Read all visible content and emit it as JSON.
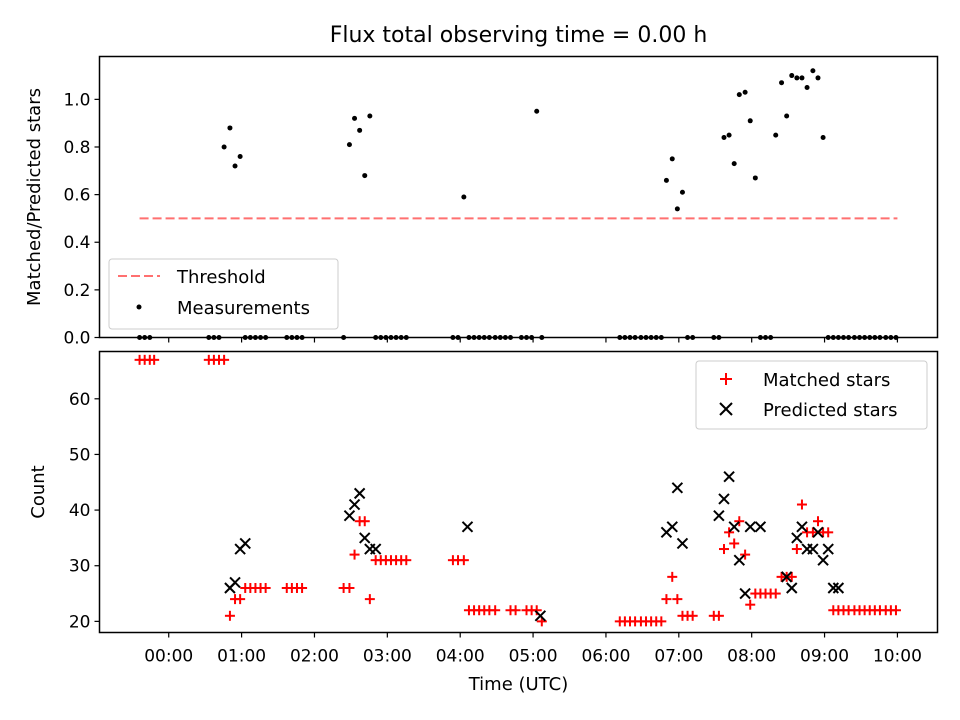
{
  "title": "Flux total observing time = 0.00 h",
  "chart_data": [
    {
      "type": "scatter",
      "ylabel": "Matched/Predicted stars",
      "xlim": [
        -0.95,
        10.55
      ],
      "ylim": [
        0,
        1.18
      ],
      "yticks": [
        0.0,
        0.2,
        0.4,
        0.6,
        0.8,
        1.0
      ],
      "ytick_labels": [
        "0.0",
        "0.2",
        "0.4",
        "0.6",
        "0.8",
        "1.0"
      ],
      "xticks": [
        0,
        1,
        2,
        3,
        4,
        5,
        6,
        7,
        8,
        9,
        10
      ],
      "grid": false,
      "legend": {
        "placement": "lower left",
        "entries": [
          "Threshold",
          "Measurements"
        ]
      },
      "threshold": {
        "name": "Threshold",
        "value": 0.5,
        "x_range": [
          -0.4,
          10.0
        ],
        "color": "#ff7070"
      },
      "series": [
        {
          "name": "Measurements",
          "marker": "dot",
          "color": "#000000",
          "x": [
            -0.4,
            -0.33,
            -0.26,
            0.55,
            0.62,
            0.69,
            0.76,
            0.84,
            0.91,
            0.98,
            1.05,
            1.12,
            1.19,
            1.26,
            1.33,
            1.62,
            1.69,
            1.76,
            1.83,
            2.4,
            2.48,
            2.55,
            2.62,
            2.69,
            2.76,
            2.84,
            2.91,
            2.98,
            3.05,
            3.12,
            3.19,
            3.26,
            3.9,
            3.97,
            4.05,
            4.12,
            4.19,
            4.26,
            4.33,
            4.4,
            4.48,
            4.55,
            4.62,
            4.69,
            4.84,
            4.91,
            4.98,
            5.05,
            5.12,
            6.19,
            6.26,
            6.33,
            6.4,
            6.48,
            6.55,
            6.62,
            6.69,
            6.76,
            6.83,
            6.91,
            6.98,
            7.05,
            7.12,
            7.19,
            7.48,
            7.55,
            7.62,
            7.69,
            7.76,
            7.83,
            7.91,
            7.98,
            8.05,
            8.12,
            8.19,
            8.26,
            8.33,
            8.41,
            8.48,
            8.55,
            8.62,
            8.69,
            8.76,
            8.84,
            8.91,
            8.98,
            9.05,
            9.12,
            9.19,
            9.26,
            9.33,
            9.41,
            9.48,
            9.55,
            9.62,
            9.69,
            9.76,
            9.84,
            9.91,
            9.98
          ],
          "y": [
            0,
            0,
            0,
            0,
            0,
            0,
            0.8,
            0.88,
            0.72,
            0.76,
            0,
            0,
            0,
            0,
            0,
            0,
            0,
            0,
            0,
            0,
            0.81,
            0.92,
            0.87,
            0.68,
            0.93,
            0,
            0,
            0,
            0,
            0,
            0,
            0,
            0,
            0,
            0.59,
            0,
            0,
            0,
            0,
            0,
            0,
            0,
            0,
            0,
            0,
            0,
            0,
            0.95,
            0,
            0,
            0,
            0,
            0,
            0,
            0,
            0,
            0,
            0,
            0.66,
            0.75,
            0.54,
            0.61,
            0,
            0,
            0,
            0,
            0.84,
            0.85,
            0.73,
            1.02,
            1.03,
            0.91,
            0.67,
            0,
            0,
            0,
            0.85,
            1.07,
            0.93,
            1.1,
            1.09,
            1.09,
            1.05,
            1.12,
            1.09,
            0.84,
            0,
            0,
            0,
            0,
            0,
            0,
            0,
            0,
            0,
            0,
            0,
            0,
            0,
            0
          ]
        }
      ]
    },
    {
      "type": "scatter",
      "ylabel": "Count",
      "xlabel": "Time (UTC)",
      "xlim": [
        -0.95,
        10.55
      ],
      "ylim": [
        18,
        68.5
      ],
      "yticks": [
        20,
        30,
        40,
        50,
        60
      ],
      "ytick_labels": [
        "20",
        "30",
        "40",
        "50",
        "60"
      ],
      "xticks": [
        0,
        1,
        2,
        3,
        4,
        5,
        6,
        7,
        8,
        9,
        10
      ],
      "xtick_labels": [
        "00:00",
        "01:00",
        "02:00",
        "03:00",
        "04:00",
        "05:00",
        "06:00",
        "07:00",
        "08:00",
        "09:00",
        "10:00"
      ],
      "grid": false,
      "legend": {
        "placement": "upper right",
        "entries": [
          "Matched stars",
          "Predicted stars"
        ]
      },
      "series": [
        {
          "name": "Matched stars",
          "marker": "plus",
          "color": "#ff0000",
          "x": [
            -0.4,
            -0.33,
            -0.26,
            -0.2,
            0.55,
            0.62,
            0.69,
            0.76,
            0.84,
            0.91,
            0.98,
            1.05,
            1.12,
            1.19,
            1.26,
            1.33,
            1.62,
            1.69,
            1.76,
            1.83,
            2.4,
            2.48,
            2.55,
            2.62,
            2.69,
            2.76,
            2.84,
            2.91,
            2.98,
            3.05,
            3.12,
            3.19,
            3.26,
            3.9,
            3.97,
            4.05,
            4.12,
            4.19,
            4.26,
            4.33,
            4.4,
            4.48,
            4.69,
            4.76,
            4.91,
            4.98,
            5.05,
            5.12,
            6.19,
            6.26,
            6.33,
            6.4,
            6.48,
            6.55,
            6.62,
            6.69,
            6.76,
            6.83,
            6.91,
            6.98,
            7.05,
            7.12,
            7.19,
            7.48,
            7.55,
            7.62,
            7.69,
            7.76,
            7.83,
            7.91,
            7.98,
            8.05,
            8.12,
            8.19,
            8.26,
            8.33,
            8.41,
            8.48,
            8.55,
            8.62,
            8.69,
            8.76,
            8.84,
            8.91,
            8.98,
            9.05,
            9.12,
            9.19,
            9.26,
            9.33,
            9.41,
            9.48,
            9.55,
            9.62,
            9.69,
            9.76,
            9.84,
            9.91,
            9.98
          ],
          "y": [
            67,
            67,
            67,
            67,
            67,
            67,
            67,
            67,
            21,
            24,
            24,
            26,
            26,
            26,
            26,
            26,
            26,
            26,
            26,
            26,
            26,
            26,
            32,
            38,
            38,
            24,
            31,
            31,
            31,
            31,
            31,
            31,
            31,
            31,
            31,
            31,
            22,
            22,
            22,
            22,
            22,
            22,
            22,
            22,
            22,
            22,
            22,
            20,
            20,
            20,
            20,
            20,
            20,
            20,
            20,
            20,
            20,
            24,
            28,
            24,
            21,
            21,
            21,
            21,
            21,
            33,
            36,
            34,
            38,
            32,
            23,
            25,
            25,
            25,
            25,
            25,
            28,
            28,
            28,
            33,
            41,
            36,
            36,
            38,
            36,
            36,
            22,
            22,
            22,
            22,
            22,
            22,
            22,
            22,
            22,
            22,
            22,
            22,
            22
          ]
        },
        {
          "name": "Predicted stars",
          "marker": "x",
          "color": "#000000",
          "x": [
            0.84,
            0.91,
            0.98,
            1.05,
            2.48,
            2.55,
            2.62,
            2.69,
            2.76,
            2.84,
            4.1,
            5.1,
            6.83,
            6.91,
            6.98,
            7.05,
            7.55,
            7.62,
            7.69,
            7.76,
            7.83,
            7.91,
            7.98,
            8.12,
            8.48,
            8.55,
            8.62,
            8.69,
            8.76,
            8.84,
            8.91,
            8.98,
            9.05,
            9.12,
            9.19
          ],
          "y": [
            26,
            27,
            33,
            34,
            39,
            41,
            43,
            35,
            33,
            33,
            37,
            21,
            36,
            37,
            44,
            34,
            39,
            42,
            46,
            37,
            31,
            25,
            37,
            37,
            28,
            26,
            35,
            37,
            33,
            33,
            36,
            31,
            33,
            26,
            26
          ]
        }
      ]
    }
  ]
}
